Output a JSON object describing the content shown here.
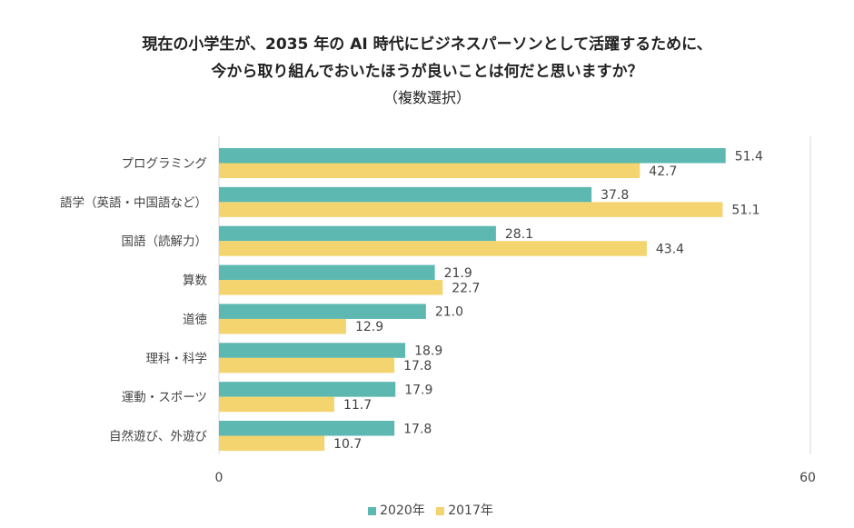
{
  "title_lines": [
    "現在の小学生が、2035 年の AI 時代にビジネスパーソンとして活躍するために、",
    "今から取り組んでおいたほうが良いことは何だと思いますか？",
    "（複数選択）"
  ],
  "chart_data": {
    "type": "bar",
    "orientation": "horizontal",
    "categories": [
      "プログラミング",
      "語学（英語・中国語など）",
      "国語（読解力）",
      "算数",
      "道徳",
      "理科・科学",
      "運動・スポーツ",
      "自然遊び、外遊び"
    ],
    "series": [
      {
        "name": "2020年",
        "color": "#5CB8B0",
        "values": [
          51.4,
          37.8,
          28.1,
          21.9,
          21.0,
          18.9,
          17.9,
          17.8
        ]
      },
      {
        "name": "2017年",
        "color": "#F3D46E",
        "values": [
          42.7,
          51.1,
          43.4,
          22.7,
          12.9,
          17.8,
          11.7,
          10.7
        ]
      }
    ],
    "xlim": [
      0,
      60
    ],
    "xticks": [
      "0",
      "60"
    ],
    "grid": false,
    "legend": "bottom"
  }
}
